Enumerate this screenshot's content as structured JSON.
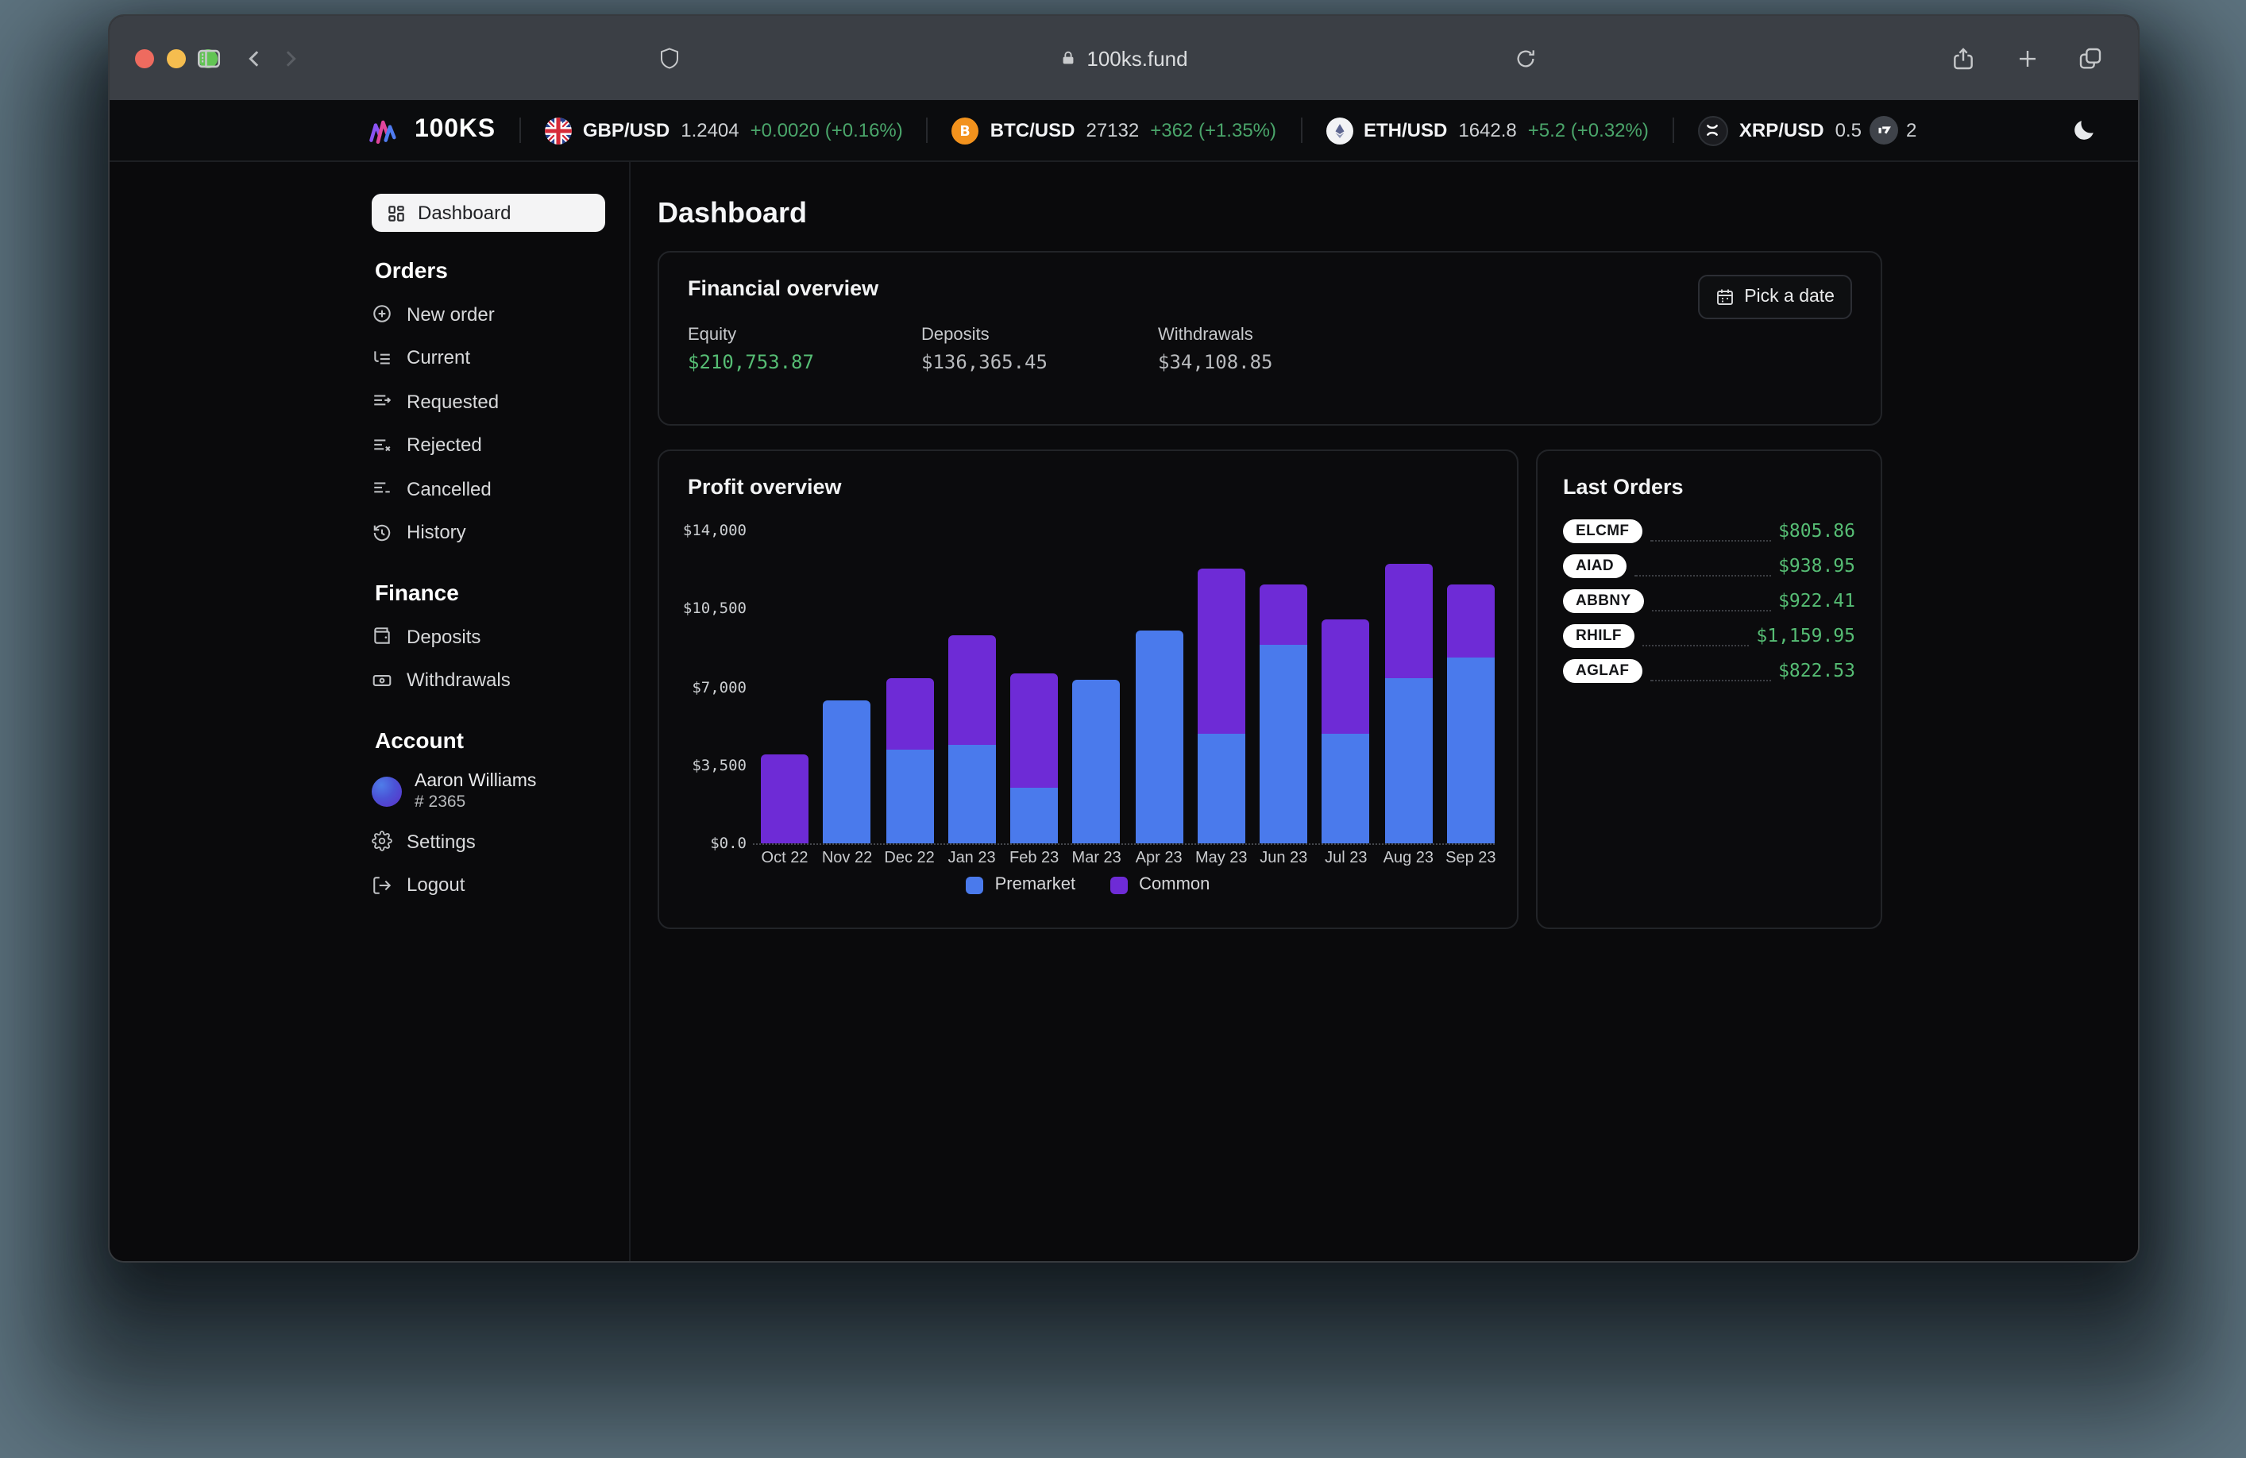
{
  "desktop": {
    "background_color": "#5d737f"
  },
  "browser": {
    "url": "100ks.fund",
    "titlebar_color": "#3b3f45",
    "traffic_colors": {
      "close": "#ee6b5f",
      "minimize": "#f5bd4f",
      "zoom": "#62c454"
    }
  },
  "brand": {
    "name": "100KS"
  },
  "ticker": {
    "positive_color": "#4aa56a",
    "pairs": [
      {
        "pair": "GBP/USD",
        "value": "1.2404",
        "change": "+0.0020 (+0.16%)"
      },
      {
        "pair": "BTC/USD",
        "value": "27132",
        "change": "+362 (+1.35%)"
      },
      {
        "pair": "ETH/USD",
        "value": "1642.8",
        "change": "+5.2 (+0.32%)"
      },
      {
        "pair": "XRP/USD",
        "value_start": "0.5",
        "value_end": "2"
      }
    ]
  },
  "sidebar": {
    "dashboard_label": "Dashboard",
    "orders_heading": "Orders",
    "orders_items": [
      {
        "label": "New order"
      },
      {
        "label": "Current"
      },
      {
        "label": "Requested"
      },
      {
        "label": "Rejected"
      },
      {
        "label": "Cancelled"
      },
      {
        "label": "History"
      }
    ],
    "finance_heading": "Finance",
    "finance_items": [
      {
        "label": "Deposits"
      },
      {
        "label": "Withdrawals"
      }
    ],
    "account_heading": "Account",
    "user": {
      "name": "Aaron Williams",
      "id": "# 2365"
    },
    "settings_label": "Settings",
    "logout_label": "Logout"
  },
  "main": {
    "title": "Dashboard",
    "financial_overview": {
      "title": "Financial overview",
      "date_button": "Pick a date",
      "stats": [
        {
          "label": "Equity",
          "value": "$210,753.87",
          "color": "#56bd74"
        },
        {
          "label": "Deposits",
          "value": "$136,365.45",
          "color": "#b9bbbe"
        },
        {
          "label": "Withdrawals",
          "value": "$34,108.85",
          "color": "#b9bbbe"
        }
      ]
    },
    "profit_overview": {
      "title": "Profit overview"
    },
    "last_orders": {
      "title": "Last Orders",
      "amount_color": "#56bd74",
      "rows": [
        {
          "ticker": "ELCMF",
          "amount": "$805.86"
        },
        {
          "ticker": "AIAD",
          "amount": "$938.95"
        },
        {
          "ticker": "ABBNY",
          "amount": "$922.41"
        },
        {
          "ticker": "RHILF",
          "amount": "$1,159.95"
        },
        {
          "ticker": "AGLAF",
          "amount": "$822.53"
        }
      ]
    }
  },
  "chart_data": {
    "type": "bar",
    "stacked": true,
    "title": "Profit overview",
    "categories": [
      "Oct 22",
      "Nov 22",
      "Dec 22",
      "Jan 23",
      "Feb 23",
      "Mar 23",
      "Apr 23",
      "May 23",
      "Jun 23",
      "Jul 23",
      "Aug 23",
      "Sep 23"
    ],
    "series": [
      {
        "name": "Premarket",
        "color": "#4a7aec",
        "values": [
          0,
          6400,
          4200,
          4400,
          2500,
          7300,
          9500,
          4900,
          8900,
          4900,
          7400,
          8300
        ]
      },
      {
        "name": "Common",
        "color": "#6e2bd6",
        "values": [
          4000,
          0,
          3200,
          4900,
          5100,
          0,
          0,
          7400,
          2700,
          5100,
          5100,
          3300
        ]
      }
    ],
    "xlabel": "",
    "ylabel": "",
    "ylim": [
      0,
      14000
    ],
    "yticks": [
      {
        "value": 0,
        "label": "$0.0"
      },
      {
        "value": 3500,
        "label": "$3,500"
      },
      {
        "value": 7000,
        "label": "$7,000"
      },
      {
        "value": 10500,
        "label": "$10,500"
      },
      {
        "value": 14000,
        "label": "$14,000"
      }
    ],
    "legend_position": "bottom",
    "grid": false
  }
}
